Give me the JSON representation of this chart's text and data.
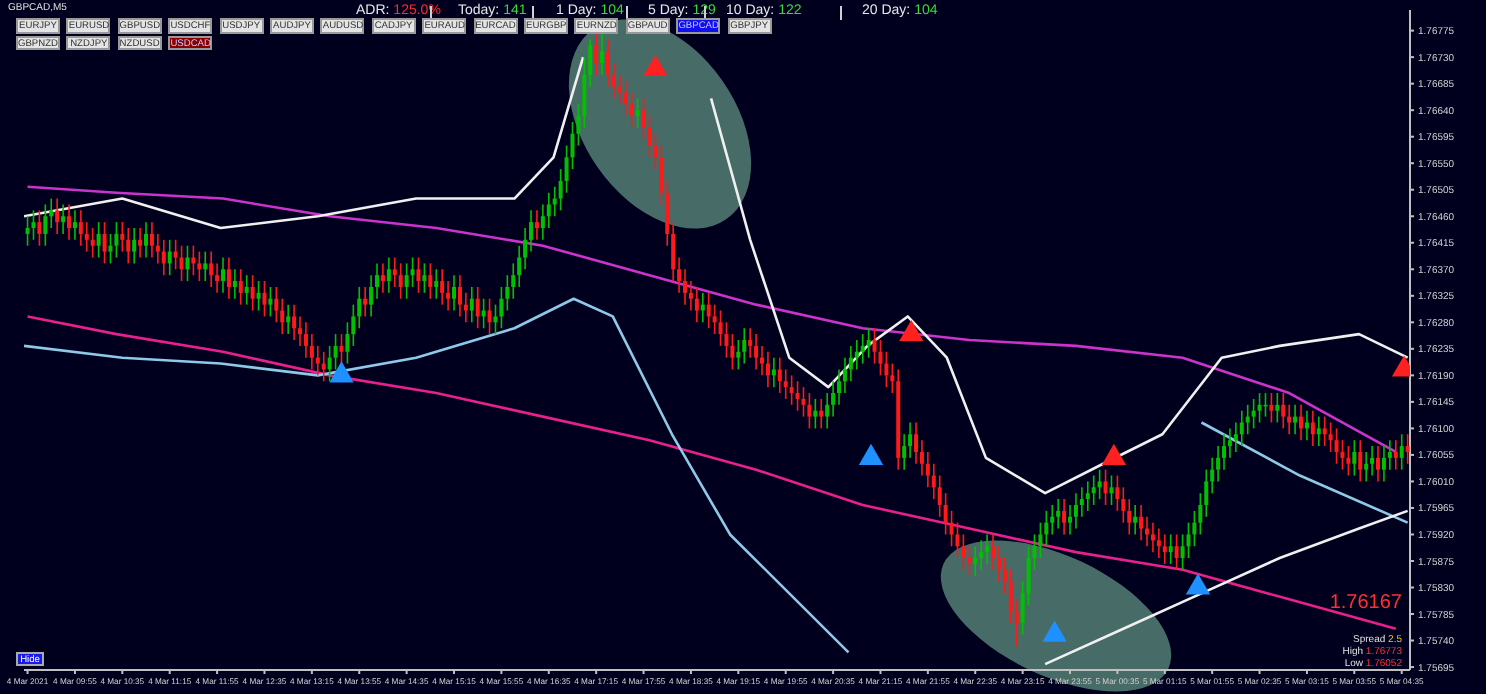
{
  "chart_data": {
    "type": "candlestick",
    "annotations": [
      "GBPCAD,M5",
      "ADR: 125.0%",
      "Today: 141",
      "1 Day: 104",
      "5 Day: 129",
      "10 Day: 122",
      "20 Day: 104",
      "EURJPY",
      "EURUSD",
      "GBPUSD",
      "USDCHF",
      "USDJPY",
      "AUDJPY",
      "AUDUSD",
      "CADJPY",
      "EURAUD",
      "EURCAD",
      "EURGBP",
      "EURNZD",
      "GBPAUD",
      "GBPCAD",
      "GBPJPY",
      "GBPNZD",
      "NZDJPY",
      "NZDUSD",
      "USDCAD",
      "Hide",
      "1.76167",
      "Spread 2.5",
      "High 1.76773",
      "Low 1.76052"
    ],
    "x": [
      "2021-03-04T09:15",
      "2021-03-04T09:20",
      "2021-03-04T09:25",
      "2021-03-04T09:30",
      "2021-03-04T09:35",
      "2021-03-04T09:40",
      "2021-03-04T09:45",
      "2021-03-04T09:50",
      "2021-03-04T09:55",
      "2021-03-04T10:00",
      "2021-03-04T10:05",
      "2021-03-04T10:10",
      "2021-03-04T10:15",
      "2021-03-04T10:20",
      "2021-03-04T10:25",
      "2021-03-04T10:30",
      "2021-03-04T10:35",
      "2021-03-04T10:40",
      "2021-03-04T10:45",
      "2021-03-04T10:50",
      "2021-03-04T10:55",
      "2021-03-04T11:00",
      "2021-03-04T11:05",
      "2021-03-04T11:10",
      "2021-03-04T11:15",
      "2021-03-04T11:20",
      "2021-03-04T11:25",
      "2021-03-04T11:30",
      "2021-03-04T11:35",
      "2021-03-04T11:40",
      "2021-03-04T11:45",
      "2021-03-04T11:50",
      "2021-03-04T11:55",
      "2021-03-04T12:00",
      "2021-03-04T12:05",
      "2021-03-04T12:10",
      "2021-03-04T12:15",
      "2021-03-04T12:20",
      "2021-03-04T12:25",
      "2021-03-04T12:30",
      "2021-03-04T12:35",
      "2021-03-04T12:40",
      "2021-03-04T12:45",
      "2021-03-04T12:50",
      "2021-03-04T12:55",
      "2021-03-04T13:00",
      "2021-03-04T13:05",
      "2021-03-04T13:10",
      "2021-03-04T13:15",
      "2021-03-04T13:20",
      "2021-03-04T13:25",
      "2021-03-04T13:30",
      "2021-03-04T13:35",
      "2021-03-04T13:40",
      "2021-03-04T13:45",
      "2021-03-04T13:50",
      "2021-03-04T13:55",
      "2021-03-04T14:00",
      "2021-03-04T14:05",
      "2021-03-04T14:10",
      "2021-03-04T14:15",
      "2021-03-04T14:20",
      "2021-03-04T14:25",
      "2021-03-04T14:30",
      "2021-03-04T14:35",
      "2021-03-04T14:40",
      "2021-03-04T14:45",
      "2021-03-04T14:50",
      "2021-03-04T14:55",
      "2021-03-04T15:00",
      "2021-03-04T15:05",
      "2021-03-04T15:10",
      "2021-03-04T15:15",
      "2021-03-04T15:20",
      "2021-03-04T15:25",
      "2021-03-04T15:30",
      "2021-03-04T15:35",
      "2021-03-04T15:40",
      "2021-03-04T15:45",
      "2021-03-04T15:50",
      "2021-03-04T15:55",
      "2021-03-04T16:00",
      "2021-03-04T16:05",
      "2021-03-04T16:10",
      "2021-03-04T16:15",
      "2021-03-04T16:20",
      "2021-03-04T16:25",
      "2021-03-04T16:30",
      "2021-03-04T16:35",
      "2021-03-04T16:40",
      "2021-03-04T16:45",
      "2021-03-04T16:50",
      "2021-03-04T16:55",
      "2021-03-04T17:00",
      "2021-03-04T17:05",
      "2021-03-04T17:10",
      "2021-03-04T17:15",
      "2021-03-04T17:20",
      "2021-03-04T17:25",
      "2021-03-04T17:30",
      "2021-03-04T17:35",
      "2021-03-04T17:40",
      "2021-03-04T17:45",
      "2021-03-04T17:50",
      "2021-03-04T17:55",
      "2021-03-04T18:00",
      "2021-03-04T18:05",
      "2021-03-04T18:10",
      "2021-03-04T18:15",
      "2021-03-04T18:20",
      "2021-03-04T18:25",
      "2021-03-04T18:30",
      "2021-03-04T18:35",
      "2021-03-04T18:40",
      "2021-03-04T18:45",
      "2021-03-04T18:50",
      "2021-03-04T18:55",
      "2021-03-04T19:00",
      "2021-03-04T19:05",
      "2021-03-04T19:10",
      "2021-03-04T19:15",
      "2021-03-04T19:20",
      "2021-03-04T19:25",
      "2021-03-04T19:30",
      "2021-03-04T19:35",
      "2021-03-04T19:40",
      "2021-03-04T19:45",
      "2021-03-04T19:50",
      "2021-03-04T19:55",
      "2021-03-04T20:00",
      "2021-03-04T20:05",
      "2021-03-04T20:10",
      "2021-03-04T20:15",
      "2021-03-04T20:20",
      "2021-03-04T20:25",
      "2021-03-04T20:30",
      "2021-03-04T20:35",
      "2021-03-04T20:40",
      "2021-03-04T20:45",
      "2021-03-04T20:50",
      "2021-03-04T20:55",
      "2021-03-04T21:00",
      "2021-03-04T21:05",
      "2021-03-04T21:10",
      "2021-03-04T21:15",
      "2021-03-04T21:20",
      "2021-03-04T21:25",
      "2021-03-04T21:30",
      "2021-03-04T21:35",
      "2021-03-04T21:40",
      "2021-03-04T21:45",
      "2021-03-04T21:50",
      "2021-03-04T21:55",
      "2021-03-04T22:00",
      "2021-03-04T22:05",
      "2021-03-04T22:10",
      "2021-03-04T22:15",
      "2021-03-04T22:20",
      "2021-03-04T22:25",
      "2021-03-04T22:30",
      "2021-03-04T22:35",
      "2021-03-04T22:40",
      "2021-03-04T22:45",
      "2021-03-04T22:50",
      "2021-03-04T22:55",
      "2021-03-04T23:00",
      "2021-03-04T23:05",
      "2021-03-04T23:10",
      "2021-03-04T23:15",
      "2021-03-04T23:20",
      "2021-03-04T23:25",
      "2021-03-04T23:30",
      "2021-03-04T23:35",
      "2021-03-04T23:40",
      "2021-03-04T23:45",
      "2021-03-04T23:50",
      "2021-03-04T23:55",
      "2021-03-05T00:00",
      "2021-03-05T00:05",
      "2021-03-05T00:10",
      "2021-03-05T00:15",
      "2021-03-05T00:20",
      "2021-03-05T00:25",
      "2021-03-05T00:30",
      "2021-03-05T00:35",
      "2021-03-05T00:40",
      "2021-03-05T00:45",
      "2021-03-05T00:50",
      "2021-03-05T00:55",
      "2021-03-05T01:00",
      "2021-03-05T01:05",
      "2021-03-05T01:10",
      "2021-03-05T01:15",
      "2021-03-05T01:20",
      "2021-03-05T01:25",
      "2021-03-05T01:30",
      "2021-03-05T01:35",
      "2021-03-05T01:40",
      "2021-03-05T01:45",
      "2021-03-05T01:50",
      "2021-03-05T01:55",
      "2021-03-05T02:00",
      "2021-03-05T02:05",
      "2021-03-05T02:10",
      "2021-03-05T02:15",
      "2021-03-05T02:20",
      "2021-03-05T02:25",
      "2021-03-05T02:30",
      "2021-03-05T02:35",
      "2021-03-05T02:40",
      "2021-03-05T02:45",
      "2021-03-05T02:50",
      "2021-03-05T02:55",
      "2021-03-05T03:00",
      "2021-03-05T03:05",
      "2021-03-05T03:10",
      "2021-03-05T03:15",
      "2021-03-05T03:20",
      "2021-03-05T03:25",
      "2021-03-05T03:30",
      "2021-03-05T03:35",
      "2021-03-05T03:40",
      "2021-03-05T03:45",
      "2021-03-05T03:50",
      "2021-03-05T03:55",
      "2021-03-05T04:00",
      "2021-03-05T04:05",
      "2021-03-05T04:10",
      "2021-03-05T04:15",
      "2021-03-05T04:20",
      "2021-03-05T04:25",
      "2021-03-05T04:30",
      "2021-03-05T04:35",
      "2021-03-05T04:40"
    ],
    "ohlc": [
      [
        1.7643,
        1.7646,
        1.7641,
        1.7644
      ],
      [
        1.7644,
        1.7647,
        1.7642,
        1.7645
      ],
      [
        1.7645,
        1.7647,
        1.7641,
        1.7643
      ],
      [
        1.7643,
        1.7648,
        1.7641,
        1.7646
      ],
      [
        1.7646,
        1.7649,
        1.7644,
        1.7647
      ],
      [
        1.7647,
        1.7649,
        1.7643,
        1.7645
      ],
      [
        1.7645,
        1.7648,
        1.7643,
        1.7646
      ],
      [
        1.7646,
        1.7648,
        1.7642,
        1.7644
      ],
      [
        1.7644,
        1.7647,
        1.7642,
        1.7645
      ],
      [
        1.7645,
        1.7647,
        1.7641,
        1.7643
      ],
      [
        1.7643,
        1.7645,
        1.764,
        1.7642
      ],
      [
        1.7642,
        1.7644,
        1.7639,
        1.7641
      ],
      [
        1.7641,
        1.7645,
        1.7639,
        1.7643
      ],
      [
        1.7643,
        1.7645,
        1.7638,
        1.764
      ],
      [
        1.764,
        1.7643,
        1.7638,
        1.7641
      ],
      [
        1.7641,
        1.7645,
        1.7639,
        1.7643
      ],
      [
        1.7643,
        1.7645,
        1.764,
        1.7642
      ],
      [
        1.7642,
        1.7644,
        1.7638,
        1.764
      ],
      [
        1.764,
        1.7644,
        1.7638,
        1.7642
      ],
      [
        1.7642,
        1.7644,
        1.7639,
        1.7641
      ],
      [
        1.7641,
        1.7645,
        1.7639,
        1.7643
      ],
      [
        1.7643,
        1.7645,
        1.7639,
        1.7641
      ],
      [
        1.7641,
        1.7643,
        1.7638,
        1.764
      ],
      [
        1.764,
        1.7642,
        1.7636,
        1.7638
      ],
      [
        1.7638,
        1.7642,
        1.7636,
        1.764
      ],
      [
        1.764,
        1.7642,
        1.7637,
        1.7639
      ],
      [
        1.7639,
        1.7641,
        1.7635,
        1.7637
      ],
      [
        1.7637,
        1.7641,
        1.7635,
        1.7639
      ],
      [
        1.7639,
        1.7641,
        1.7636,
        1.7638
      ],
      [
        1.7638,
        1.764,
        1.7635,
        1.7637
      ],
      [
        1.7637,
        1.764,
        1.7635,
        1.7638
      ],
      [
        1.7638,
        1.764,
        1.7634,
        1.7636
      ],
      [
        1.7636,
        1.7638,
        1.7633,
        1.7635
      ],
      [
        1.7635,
        1.7639,
        1.7633,
        1.7637
      ],
      [
        1.7637,
        1.7639,
        1.7632,
        1.7634
      ],
      [
        1.7634,
        1.7637,
        1.7632,
        1.7635
      ],
      [
        1.7635,
        1.7637,
        1.7631,
        1.7633
      ],
      [
        1.7633,
        1.7636,
        1.7631,
        1.7634
      ],
      [
        1.7634,
        1.7636,
        1.763,
        1.7632
      ],
      [
        1.7632,
        1.7635,
        1.763,
        1.7633
      ],
      [
        1.7633,
        1.7635,
        1.7629,
        1.7631
      ],
      [
        1.7631,
        1.7634,
        1.7629,
        1.7632
      ],
      [
        1.7632,
        1.7634,
        1.7628,
        1.763
      ],
      [
        1.763,
        1.7632,
        1.7626,
        1.7628
      ],
      [
        1.7628,
        1.7631,
        1.7626,
        1.7629
      ],
      [
        1.7629,
        1.7631,
        1.7625,
        1.7627
      ],
      [
        1.7627,
        1.7629,
        1.7624,
        1.7626
      ],
      [
        1.7626,
        1.7628,
        1.7622,
        1.7624
      ],
      [
        1.7624,
        1.7626,
        1.762,
        1.7622
      ],
      [
        1.7622,
        1.7624,
        1.7619,
        1.7621
      ],
      [
        1.7621,
        1.7623,
        1.7618,
        1.762
      ],
      [
        1.762,
        1.7624,
        1.7618,
        1.7622
      ],
      [
        1.7622,
        1.7626,
        1.762,
        1.7624
      ],
      [
        1.7624,
        1.7626,
        1.7621,
        1.7623
      ],
      [
        1.7623,
        1.7628,
        1.7621,
        1.7626
      ],
      [
        1.7626,
        1.7631,
        1.7624,
        1.7629
      ],
      [
        1.7629,
        1.7634,
        1.7627,
        1.7632
      ],
      [
        1.7632,
        1.7634,
        1.7629,
        1.7631
      ],
      [
        1.7631,
        1.7636,
        1.7629,
        1.7634
      ],
      [
        1.7634,
        1.7638,
        1.7632,
        1.7636
      ],
      [
        1.7636,
        1.7638,
        1.7633,
        1.7635
      ],
      [
        1.7635,
        1.7639,
        1.7633,
        1.7637
      ],
      [
        1.7637,
        1.7639,
        1.7634,
        1.7636
      ],
      [
        1.7636,
        1.7638,
        1.7632,
        1.7634
      ],
      [
        1.7634,
        1.7638,
        1.7632,
        1.7636
      ],
      [
        1.7636,
        1.7639,
        1.7634,
        1.7637
      ],
      [
        1.7637,
        1.7639,
        1.7633,
        1.7635
      ],
      [
        1.7635,
        1.7638,
        1.7633,
        1.7636
      ],
      [
        1.7636,
        1.7638,
        1.7632,
        1.7634
      ],
      [
        1.7634,
        1.7637,
        1.7632,
        1.7635
      ],
      [
        1.7635,
        1.7637,
        1.7631,
        1.7633
      ],
      [
        1.7633,
        1.7635,
        1.763,
        1.7632
      ],
      [
        1.7632,
        1.7636,
        1.763,
        1.7634
      ],
      [
        1.7634,
        1.7636,
        1.7629,
        1.7631
      ],
      [
        1.7631,
        1.7633,
        1.7628,
        1.763
      ],
      [
        1.763,
        1.7634,
        1.7628,
        1.7632
      ],
      [
        1.7632,
        1.7634,
        1.7627,
        1.7629
      ],
      [
        1.7629,
        1.7632,
        1.7627,
        1.763
      ],
      [
        1.763,
        1.7632,
        1.7626,
        1.7628
      ],
      [
        1.7628,
        1.7631,
        1.7626,
        1.7629
      ],
      [
        1.7629,
        1.7634,
        1.7627,
        1.7632
      ],
      [
        1.7632,
        1.7636,
        1.763,
        1.7634
      ],
      [
        1.7634,
        1.7638,
        1.7632,
        1.7636
      ],
      [
        1.7636,
        1.7641,
        1.7634,
        1.7639
      ],
      [
        1.7639,
        1.7644,
        1.7637,
        1.7642
      ],
      [
        1.7642,
        1.7647,
        1.764,
        1.7645
      ],
      [
        1.7645,
        1.7647,
        1.7642,
        1.7644
      ],
      [
        1.7644,
        1.7648,
        1.7642,
        1.7646
      ],
      [
        1.7646,
        1.765,
        1.7644,
        1.7648
      ],
      [
        1.7648,
        1.7651,
        1.7646,
        1.7649
      ],
      [
        1.7649,
        1.7654,
        1.7647,
        1.7652
      ],
      [
        1.7652,
        1.7658,
        1.765,
        1.7656
      ],
      [
        1.7656,
        1.7662,
        1.7654,
        1.766
      ],
      [
        1.766,
        1.7665,
        1.7658,
        1.7663
      ],
      [
        1.7663,
        1.7673,
        1.7661,
        1.767
      ],
      [
        1.767,
        1.7676,
        1.7668,
        1.7675
      ],
      [
        1.7675,
        1.7677,
        1.767,
        1.7672
      ],
      [
        1.7672,
        1.7677,
        1.767,
        1.7674
      ],
      [
        1.7674,
        1.7676,
        1.7668,
        1.767
      ],
      [
        1.767,
        1.7672,
        1.7666,
        1.7668
      ],
      [
        1.7668,
        1.767,
        1.7665,
        1.7667
      ],
      [
        1.7667,
        1.7669,
        1.7663,
        1.7665
      ],
      [
        1.7665,
        1.7667,
        1.7661,
        1.7663
      ],
      [
        1.7663,
        1.7666,
        1.7661,
        1.7664
      ],
      [
        1.7664,
        1.7666,
        1.7659,
        1.7661
      ],
      [
        1.7661,
        1.7663,
        1.7656,
        1.7658
      ],
      [
        1.7658,
        1.766,
        1.7654,
        1.7656
      ],
      [
        1.7656,
        1.7658,
        1.7648,
        1.765
      ],
      [
        1.765,
        1.7652,
        1.7641,
        1.7643
      ],
      [
        1.7643,
        1.7645,
        1.7635,
        1.7637
      ],
      [
        1.7637,
        1.7639,
        1.7633,
        1.7635
      ],
      [
        1.7635,
        1.7637,
        1.7631,
        1.7633
      ],
      [
        1.7633,
        1.7635,
        1.763,
        1.7632
      ],
      [
        1.7632,
        1.7634,
        1.7628,
        1.763
      ],
      [
        1.763,
        1.7633,
        1.7628,
        1.7631
      ],
      [
        1.7631,
        1.7633,
        1.7627,
        1.7629
      ],
      [
        1.7629,
        1.7631,
        1.7626,
        1.7628
      ],
      [
        1.7628,
        1.763,
        1.7624,
        1.7626
      ],
      [
        1.7626,
        1.7628,
        1.7622,
        1.7624
      ],
      [
        1.7624,
        1.7626,
        1.762,
        1.7622
      ],
      [
        1.7622,
        1.7625,
        1.762,
        1.7623
      ],
      [
        1.7623,
        1.7627,
        1.7621,
        1.7625
      ],
      [
        1.7625,
        1.7627,
        1.7622,
        1.7624
      ],
      [
        1.7624,
        1.7626,
        1.762,
        1.7622
      ],
      [
        1.7622,
        1.7624,
        1.7619,
        1.7621
      ],
      [
        1.7621,
        1.7623,
        1.7617,
        1.7619
      ],
      [
        1.7619,
        1.7622,
        1.7617,
        1.762
      ],
      [
        1.762,
        1.7622,
        1.7616,
        1.7618
      ],
      [
        1.7618,
        1.762,
        1.7615,
        1.7617
      ],
      [
        1.7617,
        1.7619,
        1.7614,
        1.7616
      ],
      [
        1.7616,
        1.7618,
        1.7613,
        1.7615
      ],
      [
        1.7615,
        1.7617,
        1.7612,
        1.7614
      ],
      [
        1.7614,
        1.7616,
        1.761,
        1.7612
      ],
      [
        1.7612,
        1.7615,
        1.761,
        1.7613
      ],
      [
        1.7613,
        1.7615,
        1.761,
        1.7612
      ],
      [
        1.7612,
        1.7616,
        1.761,
        1.7614
      ],
      [
        1.7614,
        1.7618,
        1.7612,
        1.7616
      ],
      [
        1.7616,
        1.762,
        1.7614,
        1.7618
      ],
      [
        1.7618,
        1.7622,
        1.7616,
        1.762
      ],
      [
        1.762,
        1.7624,
        1.7618,
        1.7622
      ],
      [
        1.7622,
        1.7625,
        1.762,
        1.7623
      ],
      [
        1.7623,
        1.7626,
        1.7621,
        1.7624
      ],
      [
        1.7624,
        1.7627,
        1.7622,
        1.7625
      ],
      [
        1.7625,
        1.7627,
        1.7621,
        1.7623
      ],
      [
        1.7623,
        1.7625,
        1.7619,
        1.7621
      ],
      [
        1.7621,
        1.7623,
        1.7617,
        1.7619
      ],
      [
        1.7619,
        1.7621,
        1.7616,
        1.7618
      ],
      [
        1.7618,
        1.762,
        1.7603,
        1.7605
      ],
      [
        1.7605,
        1.7609,
        1.7603,
        1.7607
      ],
      [
        1.7607,
        1.7611,
        1.7605,
        1.7609
      ],
      [
        1.7609,
        1.7611,
        1.7604,
        1.7606
      ],
      [
        1.7606,
        1.7608,
        1.7602,
        1.7604
      ],
      [
        1.7604,
        1.7606,
        1.76,
        1.7602
      ],
      [
        1.7602,
        1.7604,
        1.7598,
        1.76
      ],
      [
        1.76,
        1.7602,
        1.7595,
        1.7597
      ],
      [
        1.7597,
        1.7599,
        1.7592,
        1.7594
      ],
      [
        1.7594,
        1.7596,
        1.759,
        1.7592
      ],
      [
        1.7592,
        1.7594,
        1.7588,
        1.759
      ],
      [
        1.759,
        1.7592,
        1.7586,
        1.7588
      ],
      [
        1.7588,
        1.759,
        1.7585,
        1.7587
      ],
      [
        1.7587,
        1.759,
        1.7585,
        1.7588
      ],
      [
        1.7588,
        1.7591,
        1.7586,
        1.7589
      ],
      [
        1.7589,
        1.7592,
        1.7587,
        1.759
      ],
      [
        1.759,
        1.7592,
        1.7586,
        1.7588
      ],
      [
        1.7588,
        1.759,
        1.7584,
        1.7586
      ],
      [
        1.7586,
        1.7588,
        1.7582,
        1.7584
      ],
      [
        1.7584,
        1.7586,
        1.7577,
        1.7579
      ],
      [
        1.7579,
        1.7581,
        1.7573,
        1.7577
      ],
      [
        1.7577,
        1.7584,
        1.7575,
        1.7582
      ],
      [
        1.7582,
        1.759,
        1.758,
        1.7588
      ],
      [
        1.7588,
        1.7592,
        1.7586,
        1.759
      ],
      [
        1.759,
        1.7594,
        1.7588,
        1.7592
      ],
      [
        1.7592,
        1.7596,
        1.759,
        1.7594
      ],
      [
        1.7594,
        1.7597,
        1.7592,
        1.7595
      ],
      [
        1.7595,
        1.7598,
        1.7593,
        1.7596
      ],
      [
        1.7596,
        1.7598,
        1.7592,
        1.7594
      ],
      [
        1.7594,
        1.7597,
        1.7592,
        1.7595
      ],
      [
        1.7595,
        1.7599,
        1.7593,
        1.7597
      ],
      [
        1.7597,
        1.76,
        1.7595,
        1.7598
      ],
      [
        1.7598,
        1.7601,
        1.7596,
        1.7599
      ],
      [
        1.7599,
        1.7602,
        1.7597,
        1.76
      ],
      [
        1.76,
        1.7603,
        1.7598,
        1.7601
      ],
      [
        1.7601,
        1.7603,
        1.7597,
        1.7599
      ],
      [
        1.7599,
        1.7602,
        1.7597,
        1.76
      ],
      [
        1.76,
        1.7602,
        1.7596,
        1.7598
      ],
      [
        1.7598,
        1.76,
        1.7594,
        1.7596
      ],
      [
        1.7596,
        1.7598,
        1.7592,
        1.7594
      ],
      [
        1.7594,
        1.7597,
        1.7592,
        1.7595
      ],
      [
        1.7595,
        1.7597,
        1.7591,
        1.7593
      ],
      [
        1.7593,
        1.7595,
        1.759,
        1.7592
      ],
      [
        1.7592,
        1.7594,
        1.7589,
        1.7591
      ],
      [
        1.7591,
        1.7593,
        1.7588,
        1.759
      ],
      [
        1.759,
        1.7592,
        1.7587,
        1.7589
      ],
      [
        1.7589,
        1.7592,
        1.7587,
        1.759
      ],
      [
        1.759,
        1.7592,
        1.7586,
        1.7588
      ],
      [
        1.7588,
        1.7592,
        1.7586,
        1.759
      ],
      [
        1.759,
        1.7594,
        1.7588,
        1.7592
      ],
      [
        1.7592,
        1.7596,
        1.759,
        1.7594
      ],
      [
        1.7594,
        1.7599,
        1.7592,
        1.7597
      ],
      [
        1.7597,
        1.7603,
        1.7595,
        1.7601
      ],
      [
        1.7601,
        1.7605,
        1.7599,
        1.7603
      ],
      [
        1.7603,
        1.7607,
        1.7601,
        1.7605
      ],
      [
        1.7605,
        1.7609,
        1.7603,
        1.7607
      ],
      [
        1.7607,
        1.761,
        1.7605,
        1.7608
      ],
      [
        1.7608,
        1.7611,
        1.7606,
        1.7609
      ],
      [
        1.7609,
        1.7613,
        1.7607,
        1.7611
      ],
      [
        1.7611,
        1.7614,
        1.7609,
        1.7612
      ],
      [
        1.7612,
        1.7615,
        1.761,
        1.7613
      ],
      [
        1.7613,
        1.7616,
        1.7611,
        1.7614
      ],
      [
        1.7614,
        1.7616,
        1.7612,
        1.7614
      ],
      [
        1.7614,
        1.7616,
        1.7611,
        1.7613
      ],
      [
        1.7613,
        1.7616,
        1.7611,
        1.7614
      ],
      [
        1.7614,
        1.7616,
        1.761,
        1.7612
      ],
      [
        1.7612,
        1.7614,
        1.7609,
        1.7611
      ],
      [
        1.7611,
        1.7614,
        1.7609,
        1.7612
      ],
      [
        1.7612,
        1.7614,
        1.7608,
        1.761
      ],
      [
        1.761,
        1.7613,
        1.7608,
        1.7611
      ],
      [
        1.7611,
        1.7613,
        1.7607,
        1.7609
      ],
      [
        1.7609,
        1.7612,
        1.7607,
        1.761
      ],
      [
        1.761,
        1.7612,
        1.7607,
        1.7609
      ],
      [
        1.7609,
        1.7611,
        1.7606,
        1.7608
      ],
      [
        1.7608,
        1.761,
        1.7604,
        1.7606
      ],
      [
        1.7606,
        1.7608,
        1.7603,
        1.7605
      ],
      [
        1.7605,
        1.7607,
        1.7602,
        1.7604
      ],
      [
        1.7604,
        1.7608,
        1.7602,
        1.7606
      ],
      [
        1.7606,
        1.7608,
        1.7601,
        1.7603
      ],
      [
        1.7603,
        1.7606,
        1.7601,
        1.7604
      ],
      [
        1.7604,
        1.7607,
        1.7602,
        1.7605
      ],
      [
        1.7605,
        1.7607,
        1.7601,
        1.7603
      ],
      [
        1.7603,
        1.7607,
        1.7601,
        1.7605
      ],
      [
        1.7605,
        1.7608,
        1.7603,
        1.7606
      ],
      [
        1.7606,
        1.7608,
        1.7603,
        1.7605
      ],
      [
        1.7605,
        1.7609,
        1.7603,
        1.7607
      ],
      [
        1.7607,
        1.7609,
        1.7604,
        1.7606
      ]
    ],
    "series": [
      {
        "type": "line",
        "color": "#cc33cc",
        "x": [
          "2021-03-04T09:15",
          "2021-03-04T10:30",
          "2021-03-04T12:00",
          "2021-03-04T13:30",
          "2021-03-04T15:00",
          "2021-03-04T16:30",
          "2021-03-04T18:00",
          "2021-03-04T19:30",
          "2021-03-04T21:00",
          "2021-03-04T22:30",
          "2021-03-05T00:00",
          "2021-03-05T01:30",
          "2021-03-05T03:00",
          "2021-03-05T04:30"
        ],
        "values": [
          1.7651,
          1.765,
          1.7649,
          1.7646,
          1.7644,
          1.7641,
          1.7636,
          1.7631,
          1.7627,
          1.7625,
          1.7624,
          1.7622,
          1.7616,
          1.7606
        ]
      },
      {
        "type": "line",
        "color": "#e8208c",
        "x": [
          "2021-03-04T09:15",
          "2021-03-04T10:30",
          "2021-03-04T12:00",
          "2021-03-04T13:30",
          "2021-03-04T15:00",
          "2021-03-04T16:30",
          "2021-03-04T18:00",
          "2021-03-04T19:30",
          "2021-03-04T21:00",
          "2021-03-04T22:30",
          "2021-03-05T00:00",
          "2021-03-05T01:30",
          "2021-03-05T03:00",
          "2021-03-05T04:30"
        ],
        "values": [
          1.7629,
          1.7626,
          1.7623,
          1.7619,
          1.7616,
          1.7612,
          1.7608,
          1.7603,
          1.7597,
          1.7593,
          1.7589,
          1.7586,
          1.7581,
          1.7576
        ]
      },
      {
        "type": "line",
        "color": "#f0f0f0",
        "x": [
          "2021-03-04T09:12",
          "2021-03-04T10:35",
          "2021-03-04T11:58",
          "2021-03-04T13:20",
          "2021-03-04T14:43",
          "2021-03-04T16:06",
          "2021-03-04T16:39",
          "2021-03-04T17:04",
          "2021-03-04T17:20",
          "2021-03-04T17:36",
          "2021-03-04T18:19",
          "2021-03-04T18:52",
          "2021-03-04T19:25",
          "2021-03-04T19:58",
          "2021-03-04T20:31",
          "2021-03-04T21:04",
          "2021-03-04T21:38",
          "2021-03-04T22:11",
          "2021-03-04T22:44",
          "2021-03-04T23:34",
          "2021-03-05T00:23",
          "2021-03-05T01:13",
          "2021-03-05T02:03",
          "2021-03-05T02:52",
          "2021-03-05T03:59",
          "2021-03-05T04:40"
        ],
        "values": [
          1.7646,
          1.7649,
          1.7644,
          1.7646,
          1.7649,
          1.7649,
          1.7656,
          1.7673,
          null,
          null,
          null,
          1.7666,
          1.7642,
          1.7622,
          1.7617,
          1.7624,
          1.7629,
          1.7622,
          1.7605,
          1.7599,
          1.7604,
          1.7609,
          1.7622,
          1.7624,
          1.7626,
          1.7622
        ]
      },
      {
        "type": "line",
        "color": "#8ec9e8",
        "x": [
          "2021-03-04T09:12",
          "2021-03-04T10:35",
          "2021-03-04T11:58",
          "2021-03-04T13:20",
          "2021-03-04T14:43",
          "2021-03-04T16:06",
          "2021-03-04T16:56",
          "2021-03-04T17:29",
          "2021-03-04T18:19",
          "2021-03-04T19:08",
          "2021-03-04T19:58",
          "2021-03-04T20:48",
          "2021-03-04T23:00",
          "2021-03-05T01:46",
          "2021-03-05T03:09",
          "2021-03-05T04:40"
        ],
        "values": [
          1.7624,
          1.7622,
          1.7621,
          1.7619,
          1.7622,
          1.7627,
          1.7632,
          1.7629,
          1.7609,
          1.7592,
          1.7582,
          1.7572,
          null,
          1.7611,
          1.7602,
          1.7594
        ]
      },
      {
        "type": "line",
        "color": "#f0f0f0",
        "x": [
          "2021-03-04T23:34",
          "2021-03-05T00:40",
          "2021-03-05T01:46",
          "2021-03-05T02:52",
          "2021-03-05T03:59",
          "2021-03-05T04:40"
        ],
        "values": [
          1.757,
          1.7576,
          1.7582,
          1.7588,
          1.7593,
          1.7596
        ]
      },
      {
        "type": "scatter",
        "color": "#1e90ff",
        "marker": "triangle",
        "x": [
          "2021-03-04T13:40",
          "2021-03-04T21:07",
          "2021-03-04T23:42",
          "2021-03-05T01:43"
        ],
        "values": [
          1.7619,
          1.7605,
          1.7575,
          1.7583
        ]
      },
      {
        "type": "scatter",
        "color": "#ff2020",
        "marker": "triangle",
        "x": [
          "2021-03-04T18:05",
          "2021-03-04T21:41",
          "2021-03-05T00:32",
          "2021-03-05T04:37"
        ],
        "values": [
          1.7671,
          1.7626,
          1.7605,
          1.762
        ]
      }
    ],
    "xlim": [
      "2021-03-04T09:12",
      "2021-03-05T04:42"
    ],
    "xticks": [
      {
        "value": "2021-03-04T09:15",
        "label": "4 Mar 2021"
      },
      {
        "value": "2021-03-04T09:55",
        "label": "4 Mar 09:55"
      },
      {
        "value": "2021-03-04T10:35",
        "label": "4 Mar 10:35"
      },
      {
        "value": "2021-03-04T11:15",
        "label": "4 Mar 11:15"
      },
      {
        "value": "2021-03-04T11:55",
        "label": "4 Mar 11:55"
      },
      {
        "value": "2021-03-04T12:35",
        "label": "4 Mar 12:35"
      },
      {
        "value": "2021-03-04T13:15",
        "label": "4 Mar 13:15"
      },
      {
        "value": "2021-03-04T13:55",
        "label": "4 Mar 13:55"
      },
      {
        "value": "2021-03-04T14:35",
        "label": "4 Mar 14:35"
      },
      {
        "value": "2021-03-04T15:15",
        "label": "4 Mar 15:15"
      },
      {
        "value": "2021-03-04T15:55",
        "label": "4 Mar 15:55"
      },
      {
        "value": "2021-03-04T16:35",
        "label": "4 Mar 16:35"
      },
      {
        "value": "2021-03-04T17:15",
        "label": "4 Mar 17:15"
      },
      {
        "value": "2021-03-04T17:55",
        "label": "4 Mar 17:55"
      },
      {
        "value": "2021-03-04T18:35",
        "label": "4 Mar 18:35"
      },
      {
        "value": "2021-03-04T19:15",
        "label": "4 Mar 19:15"
      },
      {
        "value": "2021-03-04T19:55",
        "label": "4 Mar 19:55"
      },
      {
        "value": "2021-03-04T20:35",
        "label": "4 Mar 20:35"
      },
      {
        "value": "2021-03-04T21:15",
        "label": "4 Mar 21:15"
      },
      {
        "value": "2021-03-04T21:55",
        "label": "4 Mar 21:55"
      },
      {
        "value": "2021-03-04T22:35",
        "label": "4 Mar 22:35"
      },
      {
        "value": "2021-03-04T23:15",
        "label": "4 Mar 23:15"
      },
      {
        "value": "2021-03-04T23:55",
        "label": "4 Mar 23:55"
      },
      {
        "value": "2021-03-05T00:35",
        "label": "5 Mar 00:35"
      },
      {
        "value": "2021-03-05T01:15",
        "label": "5 Mar 01:15"
      },
      {
        "value": "2021-03-05T01:55",
        "label": "5 Mar 01:55"
      },
      {
        "value": "2021-03-05T02:35",
        "label": "5 Mar 02:35"
      },
      {
        "value": "2021-03-05T03:15",
        "label": "5 Mar 03:15"
      },
      {
        "value": "2021-03-05T03:55",
        "label": "5 Mar 03:55"
      },
      {
        "value": "2021-03-05T04:35",
        "label": "5 Mar 04:35"
      }
    ],
    "ylim": [
      1.7569,
      1.7681
    ],
    "yticks": [
      1.76775,
      {
        "value": 1.7673,
        "label": "1.76730"
      },
      1.76685,
      {
        "value": 1.7664,
        "label": "1.76640"
      },
      1.76595,
      {
        "value": 1.7655,
        "label": "1.76550"
      },
      1.76505,
      {
        "value": 1.7646,
        "label": "1.76460"
      },
      1.76415,
      {
        "value": 1.7637,
        "label": "1.76370"
      },
      1.76325,
      {
        "value": 1.7628,
        "label": "1.76280"
      },
      1.76235,
      {
        "value": 1.7619,
        "label": "1.76190"
      },
      1.76145,
      {
        "value": 1.761,
        "label": "1.76100"
      },
      1.76055,
      {
        "value": 1.7601,
        "label": "1.76010"
      },
      1.75965,
      {
        "value": 1.7592,
        "label": "1.75920"
      },
      1.75875,
      {
        "value": 1.7583,
        "label": "1.75830"
      },
      1.75785,
      {
        "value": 1.7574,
        "label": "1.75740"
      },
      1.75695
    ]
  }
}
